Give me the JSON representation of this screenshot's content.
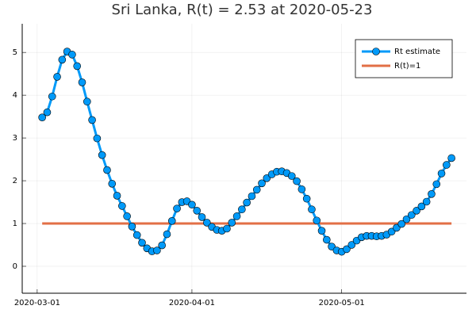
{
  "chart_data": {
    "type": "line",
    "title": "Sri Lanka, R(t) = 2.53 at 2020-05-23",
    "series": [
      {
        "name": "Rt estimate",
        "color": "#009af9",
        "markers": true,
        "x": [
          "2020-03-02",
          "2020-03-03",
          "2020-03-04",
          "2020-03-05",
          "2020-03-06",
          "2020-03-07",
          "2020-03-08",
          "2020-03-09",
          "2020-03-10",
          "2020-03-11",
          "2020-03-12",
          "2020-03-13",
          "2020-03-14",
          "2020-03-15",
          "2020-03-16",
          "2020-03-17",
          "2020-03-18",
          "2020-03-19",
          "2020-03-20",
          "2020-03-21",
          "2020-03-22",
          "2020-03-23",
          "2020-03-24",
          "2020-03-25",
          "2020-03-26",
          "2020-03-27",
          "2020-03-28",
          "2020-03-29",
          "2020-03-30",
          "2020-03-31",
          "2020-04-01",
          "2020-04-02",
          "2020-04-03",
          "2020-04-04",
          "2020-04-05",
          "2020-04-06",
          "2020-04-07",
          "2020-04-08",
          "2020-04-09",
          "2020-04-10",
          "2020-04-11",
          "2020-04-12",
          "2020-04-13",
          "2020-04-14",
          "2020-04-15",
          "2020-04-16",
          "2020-04-17",
          "2020-04-18",
          "2020-04-19",
          "2020-04-20",
          "2020-04-21",
          "2020-04-22",
          "2020-04-23",
          "2020-04-24",
          "2020-04-25",
          "2020-04-26",
          "2020-04-27",
          "2020-04-28",
          "2020-04-29",
          "2020-04-30",
          "2020-05-01",
          "2020-05-02",
          "2020-05-03",
          "2020-05-04",
          "2020-05-05",
          "2020-05-06",
          "2020-05-07",
          "2020-05-08",
          "2020-05-09",
          "2020-05-10",
          "2020-05-11",
          "2020-05-12",
          "2020-05-13",
          "2020-05-14",
          "2020-05-15",
          "2020-05-16",
          "2020-05-17",
          "2020-05-18",
          "2020-05-19",
          "2020-05-20",
          "2020-05-21",
          "2020-05-22",
          "2020-05-23"
        ],
        "values": [
          3.48,
          3.6,
          3.97,
          4.43,
          4.83,
          5.02,
          4.95,
          4.68,
          4.3,
          3.85,
          3.42,
          2.99,
          2.6,
          2.25,
          1.93,
          1.65,
          1.41,
          1.17,
          0.93,
          0.73,
          0.55,
          0.42,
          0.35,
          0.37,
          0.49,
          0.75,
          1.06,
          1.35,
          1.5,
          1.52,
          1.44,
          1.3,
          1.15,
          1.02,
          0.92,
          0.85,
          0.83,
          0.88,
          1.02,
          1.17,
          1.33,
          1.49,
          1.64,
          1.79,
          1.94,
          2.06,
          2.15,
          2.21,
          2.22,
          2.18,
          2.11,
          1.99,
          1.8,
          1.58,
          1.33,
          1.07,
          0.83,
          0.62,
          0.46,
          0.37,
          0.34,
          0.4,
          0.5,
          0.6,
          0.68,
          0.71,
          0.71,
          0.7,
          0.71,
          0.74,
          0.81,
          0.9,
          0.99,
          1.1,
          1.2,
          1.3,
          1.4,
          1.51,
          1.69,
          1.92,
          2.17,
          2.37,
          2.53
        ]
      },
      {
        "name": "R(t)=1",
        "color": "#e26f46",
        "markers": false,
        "x": [
          "2020-03-02",
          "2020-05-23"
        ],
        "values": [
          1,
          1
        ]
      }
    ],
    "xlim": [
      "2020-02-27",
      "2020-05-26"
    ],
    "xticks": [
      "2020-03-01",
      "2020-04-01",
      "2020-05-01"
    ],
    "ylim": [
      -0.63,
      5.67
    ],
    "yticks": [
      0,
      1,
      2,
      3,
      4,
      5
    ],
    "grid": true,
    "legend": "top-right"
  }
}
